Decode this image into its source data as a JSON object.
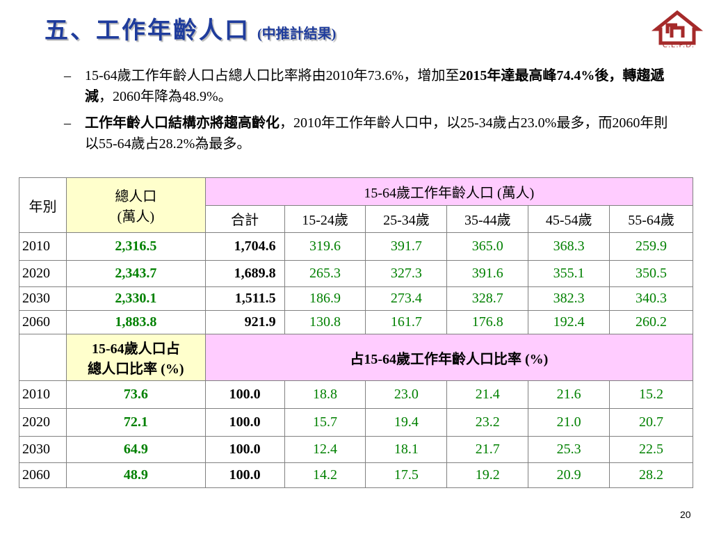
{
  "title": {
    "main": "五、工作年齡人口",
    "sub": "(中推計結果)"
  },
  "logo": {
    "text": "C.E.P.D."
  },
  "bullets": [
    {
      "dash": "–",
      "t1": "15-64歲工作年齡人口占總人口比率將由2010年73.6%，增加至",
      "b1": "2015年達最高峰74.4%後，轉趨遞減",
      "t2": "，2060年降為48.9%。"
    },
    {
      "dash": "–",
      "b1": "工作年齡人口結構亦將趨高齡化",
      "t1": "，2010年工作年齡人口中，以25-34歲占23.0%最多，而2060年則以55-64歲占28.2%為最多。"
    }
  ],
  "table": {
    "col_year": "年別",
    "col_total": [
      "總人口",
      "(萬人)"
    ],
    "group1": "15-64歲工作年齡人口 (萬人)",
    "sub_headers": [
      "合計",
      "15-24歲",
      "25-34歲",
      "35-44歲",
      "45-54歲",
      "55-64歲"
    ],
    "population_rows": [
      {
        "year": "2010",
        "total": "2,316.5",
        "sum": "1,704.6",
        "v": [
          "319.6",
          "391.7",
          "365.0",
          "368.3",
          "259.9"
        ]
      },
      {
        "year": "2020",
        "total": "2,343.7",
        "sum": "1,689.8",
        "v": [
          "265.3",
          "327.3",
          "391.6",
          "355.1",
          "350.5"
        ]
      },
      {
        "year": "2030",
        "total": "2,330.1",
        "sum": "1,511.5",
        "v": [
          "186.9",
          "273.4",
          "328.7",
          "382.3",
          "340.3"
        ]
      },
      {
        "year": "2060",
        "total": "1,883.8",
        "sum": "921.9",
        "v": [
          "130.8",
          "161.7",
          "176.8",
          "192.4",
          "260.2"
        ]
      }
    ],
    "ratio_header_yellow": [
      "15-64歲人口占",
      "總人口比率 (%)"
    ],
    "ratio_header_pink": "占15-64歲工作年齡人口比率 (%)",
    "ratio_rows": [
      {
        "year": "2010",
        "total": "73.6",
        "sum": "100.0",
        "v": [
          "18.8",
          "23.0",
          "21.4",
          "21.6",
          "15.2"
        ]
      },
      {
        "year": "2020",
        "total": "72.1",
        "sum": "100.0",
        "v": [
          "15.7",
          "19.4",
          "23.2",
          "21.0",
          "20.7"
        ]
      },
      {
        "year": "2030",
        "total": "64.9",
        "sum": "100.0",
        "v": [
          "12.4",
          "18.1",
          "21.7",
          "25.3",
          "22.5"
        ]
      },
      {
        "year": "2060",
        "total": "48.9",
        "sum": "100.0",
        "v": [
          "14.2",
          "17.5",
          "19.2",
          "20.9",
          "28.2"
        ]
      }
    ]
  },
  "page_number": "20",
  "colors": {
    "title": "#1f3c9c",
    "value_green": "#008000",
    "header_yellow": "#ffffcc",
    "header_pink": "#ffccff",
    "logo_red": "#a52a2a"
  }
}
